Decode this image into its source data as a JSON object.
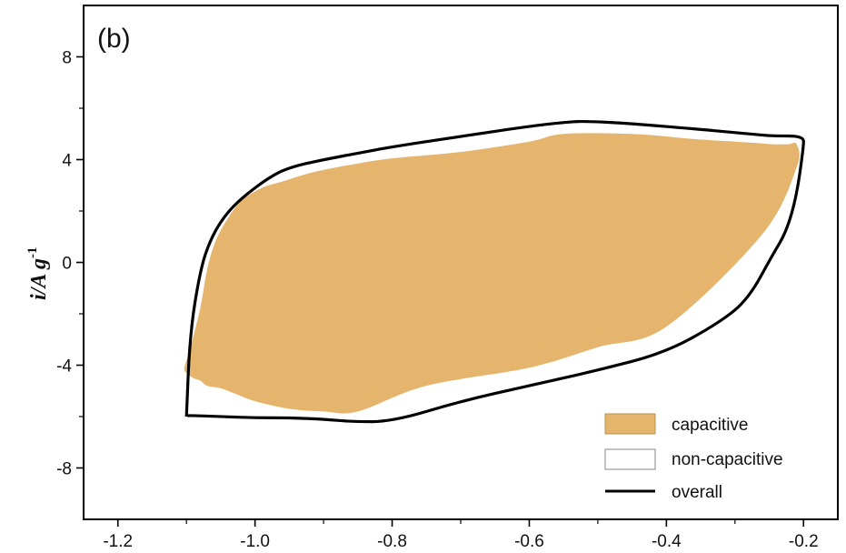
{
  "chart_data": {
    "type": "area",
    "panel_label": "(b)",
    "xlabel": "",
    "ylabel": {
      "main": "i/A g",
      "superscript": "-1"
    },
    "xlim": [
      -1.25,
      -0.15
    ],
    "ylim": [
      -10,
      10
    ],
    "x_ticks": [
      -1.2,
      -1.0,
      -0.8,
      -0.6,
      -0.4,
      -0.2
    ],
    "x_tick_labels": [
      "-1.2",
      "-1.0",
      "-0.8",
      "-0.6",
      "-0.4",
      "-0.2"
    ],
    "y_ticks": [
      -8,
      -4,
      0,
      4,
      8
    ],
    "y_tick_labels": [
      "-8",
      "-4",
      "0",
      "4",
      "8"
    ],
    "grid": false,
    "legend_position": "bottom-right",
    "colors": {
      "capacitive": "#e5b56e",
      "overall": "#000000",
      "non_capacitive": "#ffffff"
    },
    "series": [
      {
        "name": "capacitive",
        "style": "filled-area",
        "x": [
          -1.103,
          -1.095,
          -1.08,
          -1.07,
          -1.058,
          -1.04,
          -1.02,
          -0.99,
          -0.96,
          -0.93,
          -0.9,
          -0.85,
          -0.8,
          -0.7,
          -0.6,
          -0.55,
          -0.45,
          -0.36,
          -0.3,
          -0.27,
          -0.245,
          -0.222,
          -0.21,
          -0.21,
          -0.26,
          -0.4,
          -0.5,
          -0.6,
          -0.75,
          -0.85,
          -0.9,
          -0.95,
          -1.0,
          -1.03,
          -1.05,
          -1.07,
          -1.08,
          -1.09,
          -1.1
        ],
        "y": [
          -4.1,
          -3.4,
          -1.8,
          -0.3,
          0.8,
          1.7,
          2.4,
          2.9,
          3.15,
          3.4,
          3.6,
          3.85,
          4.05,
          4.3,
          4.7,
          5.0,
          5.0,
          4.8,
          4.7,
          4.65,
          4.6,
          4.6,
          4.6,
          3.7,
          1.1,
          -2.5,
          -3.3,
          -4.1,
          -4.8,
          -5.8,
          -5.8,
          -5.7,
          -5.4,
          -5.1,
          -4.9,
          -4.8,
          -4.6,
          -4.5,
          -4.3
        ]
      },
      {
        "name": "overall",
        "style": "line",
        "x": [
          -1.1,
          -1.095,
          -1.08,
          -1.065,
          -1.045,
          -1.02,
          -0.98,
          -0.95,
          -0.9,
          -0.85,
          -0.8,
          -0.7,
          -0.6,
          -0.55,
          -0.52,
          -0.45,
          -0.36,
          -0.3,
          -0.27,
          -0.245,
          -0.2,
          -0.2,
          -0.21,
          -0.225,
          -0.245,
          -0.28,
          -0.32,
          -0.4,
          -0.5,
          -0.6,
          -0.7,
          -0.8,
          -0.86,
          -0.9,
          -0.95,
          -1.0,
          -1.05,
          -1.1,
          -1.1
        ],
        "y": [
          -6.0,
          -2.8,
          -0.3,
          0.9,
          1.8,
          2.5,
          3.3,
          3.7,
          4.0,
          4.25,
          4.5,
          4.9,
          5.3,
          5.45,
          5.5,
          5.4,
          5.2,
          5.05,
          4.98,
          4.92,
          4.92,
          4.5,
          2.6,
          1.2,
          0.3,
          -1.4,
          -2.3,
          -3.5,
          -4.2,
          -4.8,
          -5.4,
          -6.2,
          -6.2,
          -6.1,
          -6.05,
          -6.05,
          -6.0,
          -5.95,
          -6.0
        ]
      }
    ],
    "legend": [
      {
        "label": "capacitive",
        "swatch": "filled"
      },
      {
        "label": "non-capacitive",
        "swatch": "outlined"
      },
      {
        "label": "overall",
        "swatch": "line"
      }
    ]
  }
}
